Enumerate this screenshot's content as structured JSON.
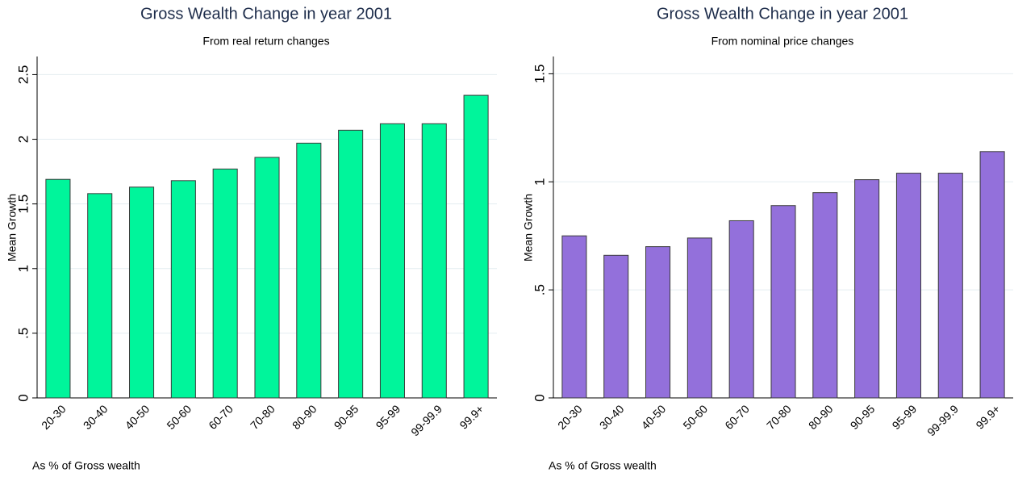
{
  "chart_data": [
    {
      "type": "bar",
      "title": "Gross Wealth Change in year 2001",
      "subtitle": "From real return changes",
      "ylabel": "Mean Growth",
      "note": "As % of Gross wealth",
      "categories": [
        "20-30",
        "30-40",
        "40-50",
        "50-60",
        "60-70",
        "70-80",
        "80-90",
        "90-95",
        "95-99",
        "99-99.9",
        "99.9+"
      ],
      "values": [
        1.69,
        1.58,
        1.63,
        1.68,
        1.77,
        1.86,
        1.97,
        2.07,
        2.12,
        2.12,
        2.34
      ],
      "color": "#00f59b",
      "ylim": [
        0,
        2.64
      ],
      "yticks": [
        0,
        {
          "value": 0.5,
          "label": ".5"
        },
        1,
        1.5,
        2,
        2.5
      ],
      "grid": true
    },
    {
      "type": "bar",
      "title": "Gross Wealth Change in year 2001",
      "subtitle": "From nominal price changes",
      "ylabel": "Mean Growth",
      "note": "As % of Gross wealth",
      "categories": [
        "20-30",
        "30-40",
        "40-50",
        "50-60",
        "60-70",
        "70-80",
        "80-90",
        "90-95",
        "95-99",
        "99-99.9",
        "99.9+"
      ],
      "values": [
        0.75,
        0.66,
        0.7,
        0.74,
        0.82,
        0.89,
        0.95,
        1.01,
        1.04,
        1.04,
        1.14
      ],
      "color": "#9370db",
      "ylim": [
        0,
        1.58
      ],
      "yticks": [
        0,
        {
          "value": 0.5,
          "label": ".5"
        },
        1,
        1.5
      ],
      "grid": true
    }
  ]
}
